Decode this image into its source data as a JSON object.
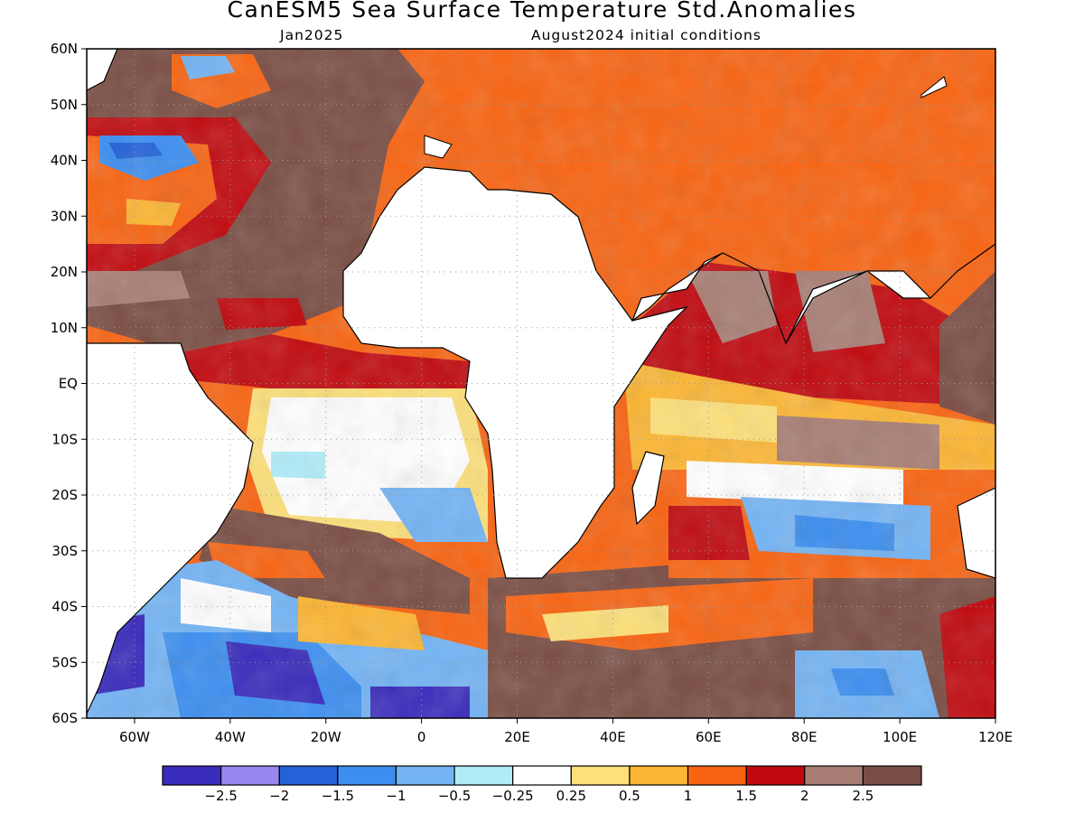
{
  "title": "CanESM5 Sea Surface Temperature Std.Anomalies",
  "subtitle_left": "Jan2025",
  "subtitle_right": "August2024 initial conditions",
  "map": {
    "lon_range": [
      -70,
      120
    ],
    "lat_range": [
      -60,
      60
    ],
    "lat_ticks": [
      {
        "value": 60,
        "label": "60N"
      },
      {
        "value": 50,
        "label": "50N"
      },
      {
        "value": 40,
        "label": "40N"
      },
      {
        "value": 30,
        "label": "30N"
      },
      {
        "value": 20,
        "label": "20N"
      },
      {
        "value": 10,
        "label": "10N"
      },
      {
        "value": 0,
        "label": "EQ"
      },
      {
        "value": -10,
        "label": "10S"
      },
      {
        "value": -20,
        "label": "20S"
      },
      {
        "value": -30,
        "label": "30S"
      },
      {
        "value": -40,
        "label": "40S"
      },
      {
        "value": -50,
        "label": "50S"
      },
      {
        "value": -60,
        "label": "60S"
      }
    ],
    "lon_ticks": [
      {
        "value": -60,
        "label": "60W"
      },
      {
        "value": -40,
        "label": "40W"
      },
      {
        "value": -20,
        "label": "20W"
      },
      {
        "value": 0,
        "label": "0"
      },
      {
        "value": 20,
        "label": "20E"
      },
      {
        "value": 40,
        "label": "40E"
      },
      {
        "value": 60,
        "label": "60E"
      },
      {
        "value": 80,
        "label": "80E"
      },
      {
        "value": 100,
        "label": "100E"
      },
      {
        "value": 120,
        "label": "120E"
      }
    ]
  },
  "colorbar": {
    "colors": [
      "#3a2cbc",
      "#9a86f0",
      "#2462d8",
      "#3c8ef0",
      "#74b4f4",
      "#b0ecf8",
      "#ffffff",
      "#fde07a",
      "#fcb634",
      "#f86412",
      "#c00a10",
      "#a87e74",
      "#7a4e44"
    ],
    "labels": [
      "−2.5",
      "−2",
      "−1.5",
      "−1",
      "−0.5",
      "−0.25",
      "0.25",
      "0.5",
      "1",
      "1.5",
      "2",
      "2.5"
    ]
  }
}
